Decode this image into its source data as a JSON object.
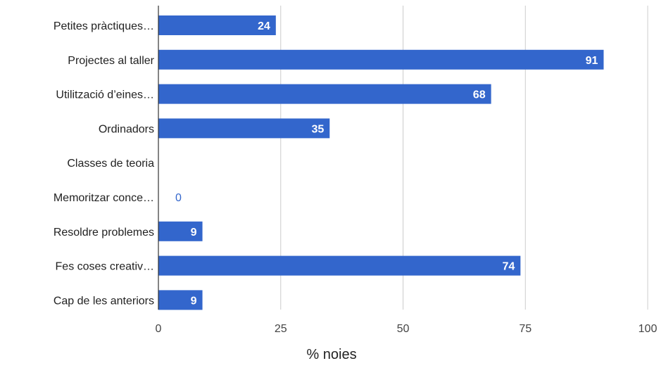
{
  "chart_data": {
    "type": "bar",
    "orientation": "horizontal",
    "categories": [
      "Petites pràctiques…",
      "Projectes al taller",
      "Utilització d’eines…",
      "Ordinadors",
      "Classes de teoria",
      "Memoritzar conce…",
      "Resoldre problemes",
      "Fes coses creativ…",
      "Cap de les anteriors"
    ],
    "values": [
      24,
      91,
      68,
      35,
      null,
      0,
      9,
      74,
      9
    ],
    "value_labels": [
      "24",
      "91",
      "68",
      "35",
      "",
      "0",
      "9",
      "74",
      "9"
    ],
    "xlabel": "% noies",
    "xlim": [
      0,
      100
    ],
    "xticks": [
      0,
      25,
      50,
      75,
      100
    ],
    "xtick_labels": [
      "0",
      "25",
      "50",
      "75",
      "100"
    ],
    "grid": true,
    "bar_color": "#3366cc",
    "grid_color": "#cccccc"
  }
}
